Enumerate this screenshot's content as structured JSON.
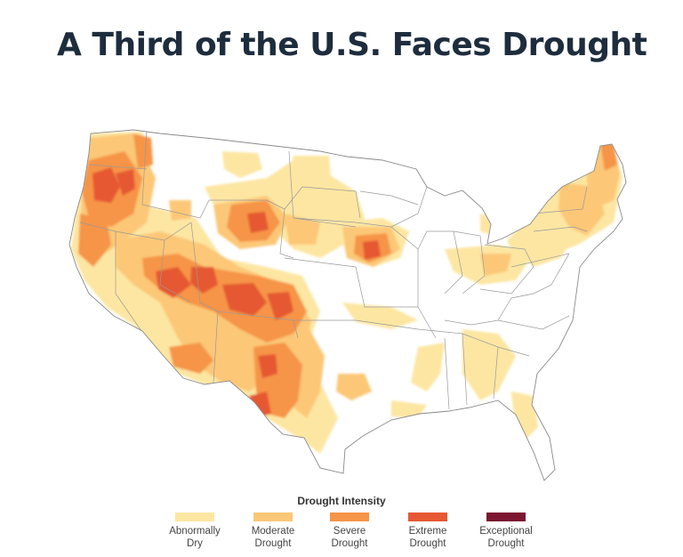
{
  "title": "A Third of the U.S. Faces Drought",
  "legend": {
    "title": "Drought Intensity",
    "items": [
      {
        "label": "Abnormally\nDry",
        "color": "#fde6a2"
      },
      {
        "label": "Moderate\nDrought",
        "color": "#fcc777"
      },
      {
        "label": "Severe\nDrought",
        "color": "#f69447"
      },
      {
        "label": "Extreme\nDrought",
        "color": "#e55832"
      },
      {
        "label": "Exceptional\nDrought",
        "color": "#7c1631"
      }
    ]
  }
}
